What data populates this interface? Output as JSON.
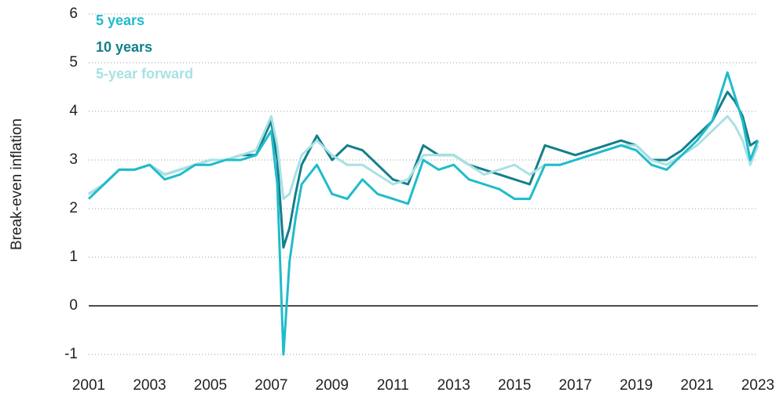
{
  "chart_data": {
    "type": "line",
    "y_label": "Break-even inflation",
    "xlim": [
      2001,
      2023
    ],
    "xticks": [
      2001,
      2003,
      2005,
      2007,
      2009,
      2011,
      2013,
      2015,
      2017,
      2019,
      2021,
      2023
    ],
    "ylim": [
      -1,
      6
    ],
    "yticks": [
      -1,
      0,
      1,
      2,
      3,
      4,
      5,
      6
    ],
    "grid": true,
    "legend": "top-left",
    "x": [
      2001,
      2001.5,
      2002,
      2002.5,
      2003,
      2003.5,
      2004,
      2004.5,
      2005,
      2005.5,
      2006,
      2006.5,
      2007,
      2007.2,
      2007.4,
      2007.6,
      2007.8,
      2008,
      2008.5,
      2009,
      2009.5,
      2010,
      2010.5,
      2011,
      2011.5,
      2012,
      2012.5,
      2013,
      2013.5,
      2014,
      2014.5,
      2015,
      2015.5,
      2016,
      2016.5,
      2017,
      2017.5,
      2018,
      2018.5,
      2019,
      2019.5,
      2020,
      2020.5,
      2021,
      2021.5,
      2022,
      2022.25,
      2022.5,
      2022.75,
      2023
    ],
    "series": [
      {
        "name": "5 years",
        "color": "#1fbccb",
        "values": [
          2.2,
          2.5,
          2.8,
          2.8,
          2.9,
          2.6,
          2.7,
          2.9,
          2.9,
          3.0,
          3.0,
          3.1,
          3.6,
          2.5,
          -1.0,
          0.9,
          1.8,
          2.5,
          2.9,
          2.3,
          2.2,
          2.6,
          2.3,
          2.2,
          2.1,
          3.0,
          2.8,
          2.9,
          2.6,
          2.5,
          2.4,
          2.2,
          2.2,
          2.9,
          2.9,
          3.0,
          3.1,
          3.2,
          3.3,
          3.2,
          2.9,
          2.8,
          3.1,
          3.4,
          3.8,
          4.8,
          4.3,
          3.8,
          3.0,
          3.4
        ]
      },
      {
        "name": "10 years",
        "color": "#137f8c",
        "values": [
          2.3,
          2.5,
          2.8,
          2.8,
          2.9,
          2.7,
          2.8,
          2.9,
          3.0,
          3.0,
          3.1,
          3.1,
          3.8,
          3.0,
          1.2,
          1.6,
          2.3,
          2.9,
          3.5,
          3.0,
          3.3,
          3.2,
          2.9,
          2.6,
          2.5,
          3.3,
          3.1,
          3.1,
          2.9,
          2.8,
          2.7,
          2.6,
          2.5,
          3.3,
          3.2,
          3.1,
          3.2,
          3.3,
          3.4,
          3.3,
          3.0,
          3.0,
          3.2,
          3.5,
          3.8,
          4.4,
          4.2,
          3.9,
          3.3,
          3.4
        ]
      },
      {
        "name": "5-year forward",
        "color": "#a9e1e4",
        "values": [
          2.3,
          2.5,
          2.8,
          2.8,
          2.9,
          2.7,
          2.8,
          2.9,
          3.0,
          3.0,
          3.1,
          3.2,
          3.9,
          3.3,
          2.2,
          2.3,
          2.7,
          3.1,
          3.4,
          3.1,
          2.9,
          2.9,
          2.7,
          2.5,
          2.6,
          3.1,
          3.1,
          3.1,
          2.9,
          2.7,
          2.8,
          2.9,
          2.7,
          2.9,
          2.9,
          3.0,
          3.1,
          3.2,
          3.3,
          3.3,
          3.0,
          2.9,
          3.1,
          3.3,
          3.6,
          3.9,
          3.7,
          3.4,
          2.9,
          3.3
        ]
      }
    ]
  }
}
